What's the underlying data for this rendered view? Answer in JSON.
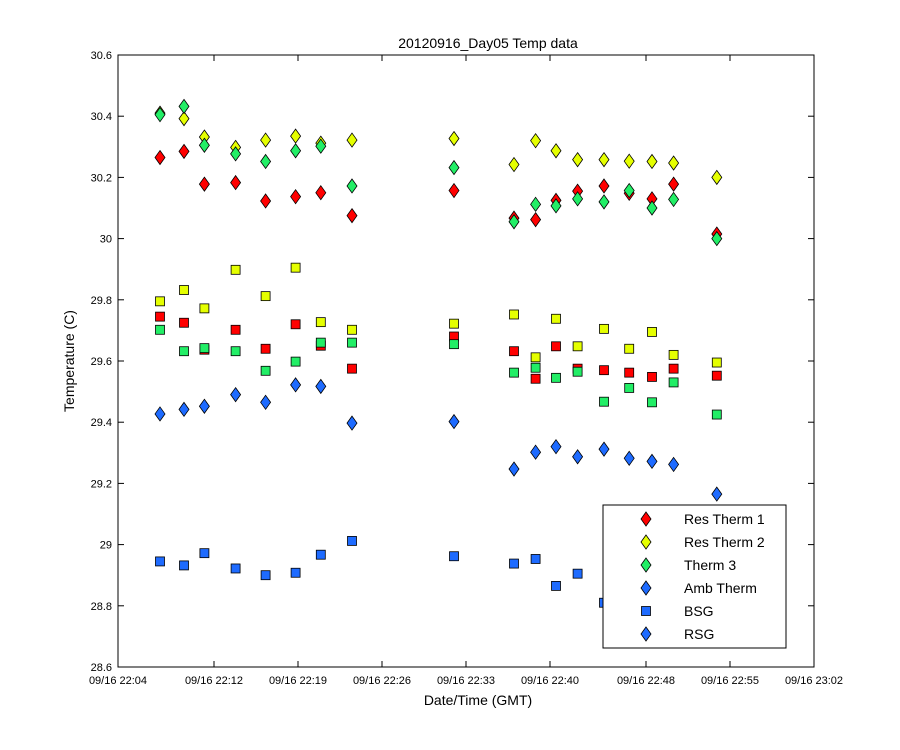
{
  "chart_data": {
    "type": "scatter",
    "title": "20120916_Day05 Temp data",
    "xlabel": "Date/Time (GMT)",
    "ylabel": "Temperature (C)",
    "xlim_minutes": [
      1324,
      1382
    ],
    "ylim": [
      28.6,
      30.6
    ],
    "x_ticks": [
      {
        "value": 1324,
        "label": "09/16 22:04"
      },
      {
        "value": 1332,
        "label": "09/16 22:12"
      },
      {
        "value": 1339,
        "label": "09/16 22:19"
      },
      {
        "value": 1346,
        "label": "09/16 22:26"
      },
      {
        "value": 1353,
        "label": "09/16 22:33"
      },
      {
        "value": 1360,
        "label": "09/16 22:40"
      },
      {
        "value": 1368,
        "label": "09/16 22:48"
      },
      {
        "value": 1375,
        "label": "09/16 22:55"
      },
      {
        "value": 1382,
        "label": "09/16 23:02"
      }
    ],
    "y_ticks": [
      {
        "value": 28.6,
        "label": "28.6"
      },
      {
        "value": 28.8,
        "label": "28.8"
      },
      {
        "value": 29.0,
        "label": "29"
      },
      {
        "value": 29.2,
        "label": "29.2"
      },
      {
        "value": 29.4,
        "label": "29.4"
      },
      {
        "value": 29.6,
        "label": "29.6"
      },
      {
        "value": 29.8,
        "label": "29.8"
      },
      {
        "value": 30.0,
        "label": "30"
      },
      {
        "value": 30.2,
        "label": "30.2"
      },
      {
        "value": 30.4,
        "label": "30.4"
      },
      {
        "value": 30.6,
        "label": "30.6"
      }
    ],
    "grid": false,
    "legend": "bottom-right",
    "series": [
      {
        "name": "Res Therm 1",
        "marker": "diamond",
        "color": "#ff0000",
        "x": [
          1327.5,
          1329.5,
          1331.2,
          1333.8,
          1336.3,
          1338.8,
          1340.9,
          1343.5,
          1352.0,
          1357.0,
          1358.8,
          1360.5,
          1362.3,
          1364.5,
          1366.6,
          1368.5,
          1370.3,
          1373.9
        ],
        "y": [
          30.265,
          30.285,
          30.178,
          30.183,
          30.123,
          30.137,
          30.15,
          30.075,
          30.157,
          30.067,
          30.062,
          30.125,
          30.155,
          30.172,
          30.148,
          30.13,
          30.178,
          30.015
        ]
      },
      {
        "name": "Res Therm 2",
        "marker": "diamond",
        "color": "#e5ff00",
        "x": [
          1327.5,
          1329.5,
          1331.2,
          1333.8,
          1336.3,
          1338.8,
          1340.9,
          1343.5,
          1352.0,
          1357.0,
          1358.8,
          1360.5,
          1362.3,
          1364.5,
          1366.6,
          1368.5,
          1370.3,
          1373.9
        ],
        "y": [
          30.41,
          30.392,
          30.332,
          30.298,
          30.322,
          30.335,
          30.312,
          30.322,
          30.327,
          30.242,
          30.32,
          30.287,
          30.258,
          30.258,
          30.253,
          30.252,
          30.247,
          30.2
        ]
      },
      {
        "name": "Therm 3",
        "marker": "diamond",
        "color": "#22ee66",
        "x": [
          1327.5,
          1329.5,
          1331.2,
          1333.8,
          1336.3,
          1338.8,
          1340.9,
          1343.5,
          1352.0,
          1357.0,
          1358.8,
          1360.5,
          1362.3,
          1364.5,
          1366.6,
          1368.5,
          1370.3,
          1373.9
        ],
        "y": [
          30.405,
          30.432,
          30.305,
          30.277,
          30.252,
          30.287,
          30.302,
          30.172,
          30.232,
          30.055,
          30.112,
          30.107,
          30.13,
          30.12,
          30.157,
          30.1,
          30.128,
          30.0
        ]
      },
      {
        "name": "Amb Therm",
        "marker": "diamond",
        "color": "#1e6bff",
        "x": [
          1327.5,
          1329.5,
          1331.2,
          1333.8,
          1336.3,
          1338.8,
          1340.9,
          1343.5,
          1352.0,
          1357.0,
          1358.8,
          1360.5,
          1362.3,
          1364.5,
          1366.6,
          1368.5,
          1370.3,
          1373.9
        ],
        "y": [
          29.427,
          29.442,
          29.452,
          29.49,
          29.465,
          29.522,
          29.517,
          29.397,
          29.402,
          29.247,
          29.302,
          29.32,
          29.287,
          29.312,
          29.282,
          29.272,
          29.262,
          29.165
        ]
      },
      {
        "name": "BSG",
        "marker": "square",
        "color": "#1e6bff",
        "x": [
          1327.5,
          1329.5,
          1331.2,
          1333.8,
          1336.3,
          1338.8,
          1340.9,
          1343.5,
          1352.0,
          1357.0,
          1358.8,
          1360.5,
          1362.3,
          1364.5,
          1366.6
        ],
        "y": [
          28.945,
          28.932,
          28.972,
          28.922,
          28.9,
          28.908,
          28.967,
          29.012,
          28.962,
          28.938,
          28.953,
          28.865,
          28.905,
          28.81,
          28.822
        ]
      },
      {
        "name": "RSG",
        "marker": "diamond",
        "color": "#1e6bff",
        "x": [],
        "y": []
      },
      {
        "name": "",
        "marker": "square",
        "color": "#ff0000",
        "x": [
          1327.5,
          1329.5,
          1331.2,
          1333.8,
          1336.3,
          1338.8,
          1340.9,
          1343.5,
          1352.0,
          1357.0,
          1358.8,
          1360.5,
          1362.3,
          1364.5,
          1366.6,
          1368.5,
          1370.3,
          1373.9
        ],
        "y": [
          29.745,
          29.725,
          29.637,
          29.702,
          29.64,
          29.72,
          29.65,
          29.575,
          29.68,
          29.632,
          29.542,
          29.648,
          29.575,
          29.57,
          29.562,
          29.548,
          29.575,
          29.552
        ]
      },
      {
        "name": "",
        "marker": "square",
        "color": "#e5ff00",
        "x": [
          1327.5,
          1329.5,
          1331.2,
          1333.8,
          1336.3,
          1338.8,
          1340.9,
          1343.5,
          1352.0,
          1357.0,
          1358.8,
          1360.5,
          1362.3,
          1364.5,
          1366.6,
          1368.5,
          1370.3,
          1373.9
        ],
        "y": [
          29.795,
          29.832,
          29.772,
          29.898,
          29.812,
          29.905,
          29.727,
          29.702,
          29.722,
          29.752,
          29.612,
          29.738,
          29.648,
          29.705,
          29.64,
          29.695,
          29.62,
          29.595
        ]
      },
      {
        "name": "",
        "marker": "square",
        "color": "#22ee66",
        "x": [
          1327.5,
          1329.5,
          1331.2,
          1333.8,
          1336.3,
          1338.8,
          1340.9,
          1343.5,
          1352.0,
          1357.0,
          1358.8,
          1360.5,
          1362.3,
          1364.5,
          1366.6,
          1368.5,
          1370.3,
          1373.9
        ],
        "y": [
          29.702,
          29.632,
          29.642,
          29.632,
          29.568,
          29.598,
          29.66,
          29.66,
          29.655,
          29.562,
          29.578,
          29.545,
          29.565,
          29.467,
          29.512,
          29.465,
          29.53,
          29.425
        ]
      }
    ]
  }
}
